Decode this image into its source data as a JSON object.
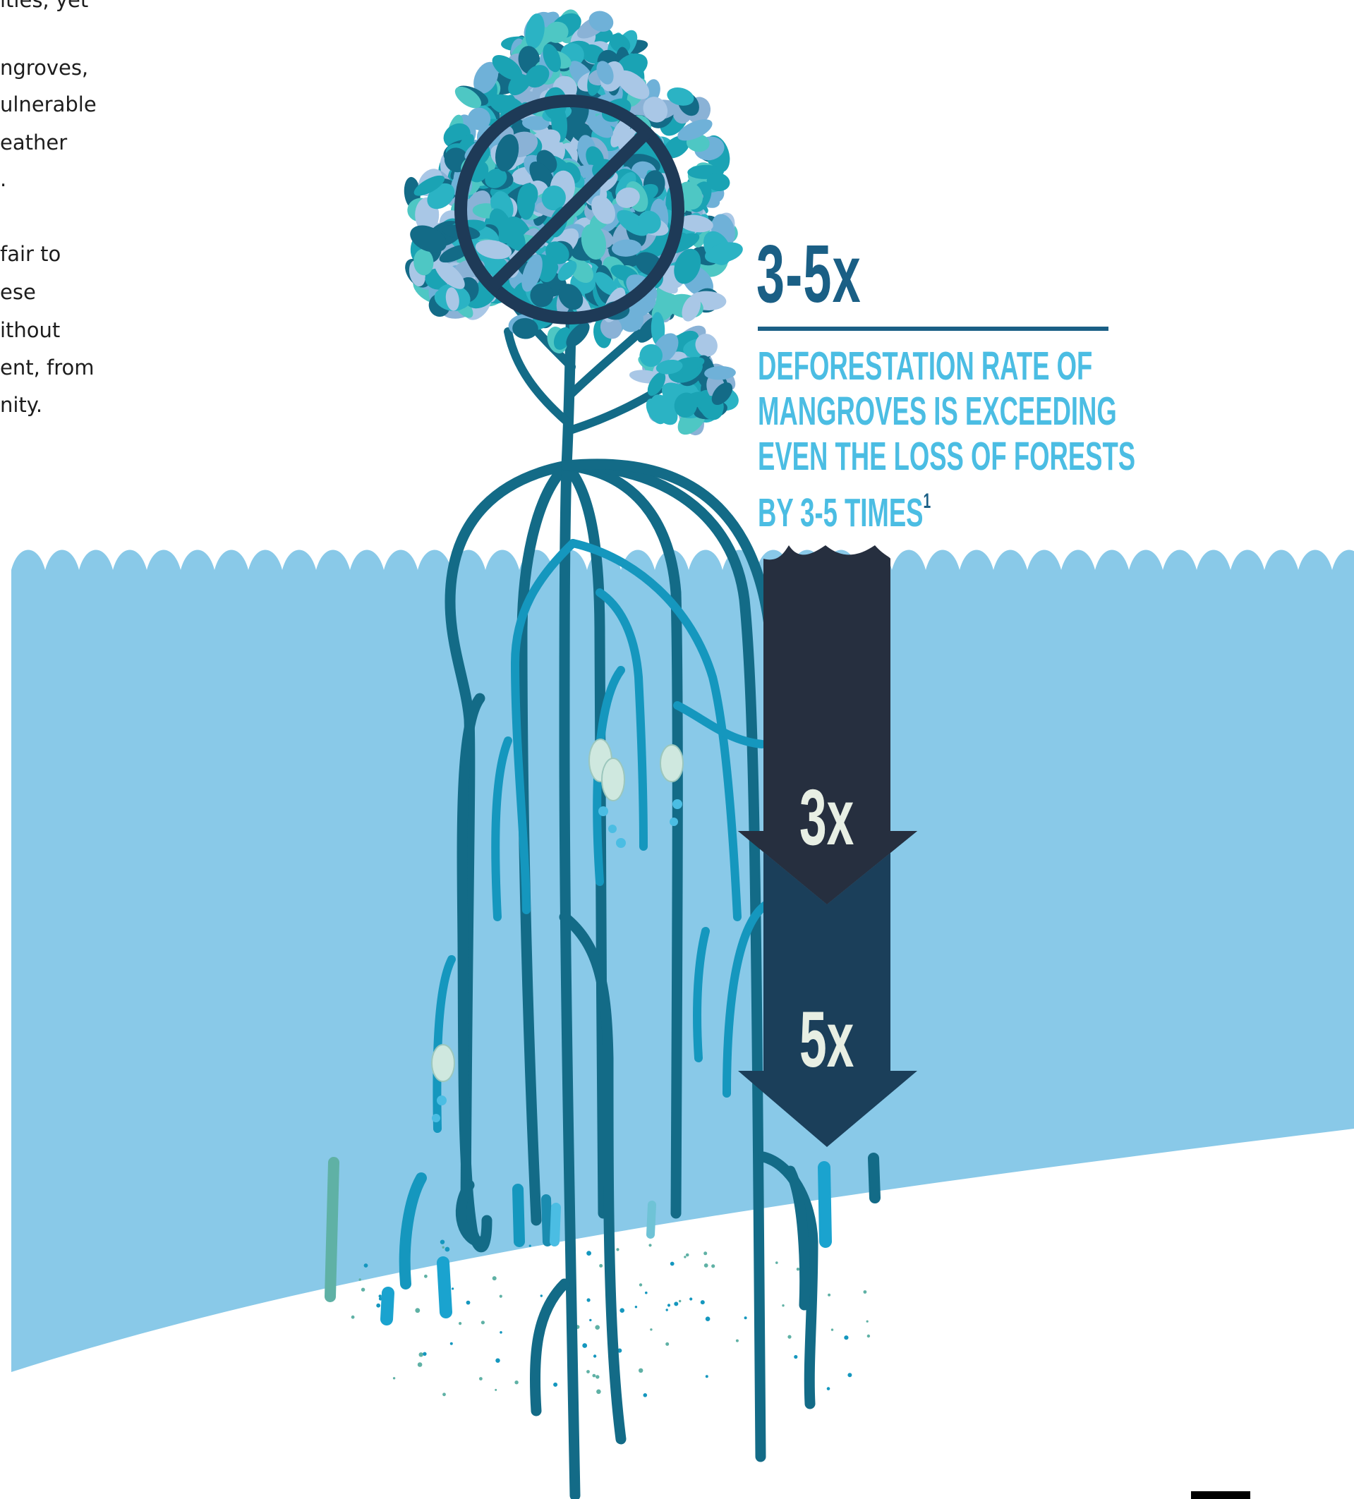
{
  "side_text": {
    "lines": [
      "ities, yet",
      "",
      "ngroves,",
      "ulnerable",
      "eather",
      ".",
      "",
      "fair to",
      "ese",
      "ithout",
      "ent, from",
      "nity."
    ]
  },
  "stat": {
    "value": "3-5x",
    "description_lines": [
      "DEFORESTATION RATE OF",
      "MANGROVES IS EXCEEDING",
      "EVEN THE LOSS OF FORESTS",
      "BY 3-5 TIMES"
    ],
    "footnote": "1"
  },
  "arrows": {
    "upper_label": "3x",
    "lower_label": "5x"
  },
  "colors": {
    "water": "#89c9e8",
    "root_dark": "#136b87",
    "root_light": "#1597be",
    "arrow_upper": "#262f3f",
    "arrow_lower": "#1b3f5a",
    "prohibition": "#1e3a57",
    "stat_dark": "#1a5f85",
    "stat_light": "#4bbde3"
  },
  "icons": {
    "prohibition": "no-entry-sign-icon"
  }
}
